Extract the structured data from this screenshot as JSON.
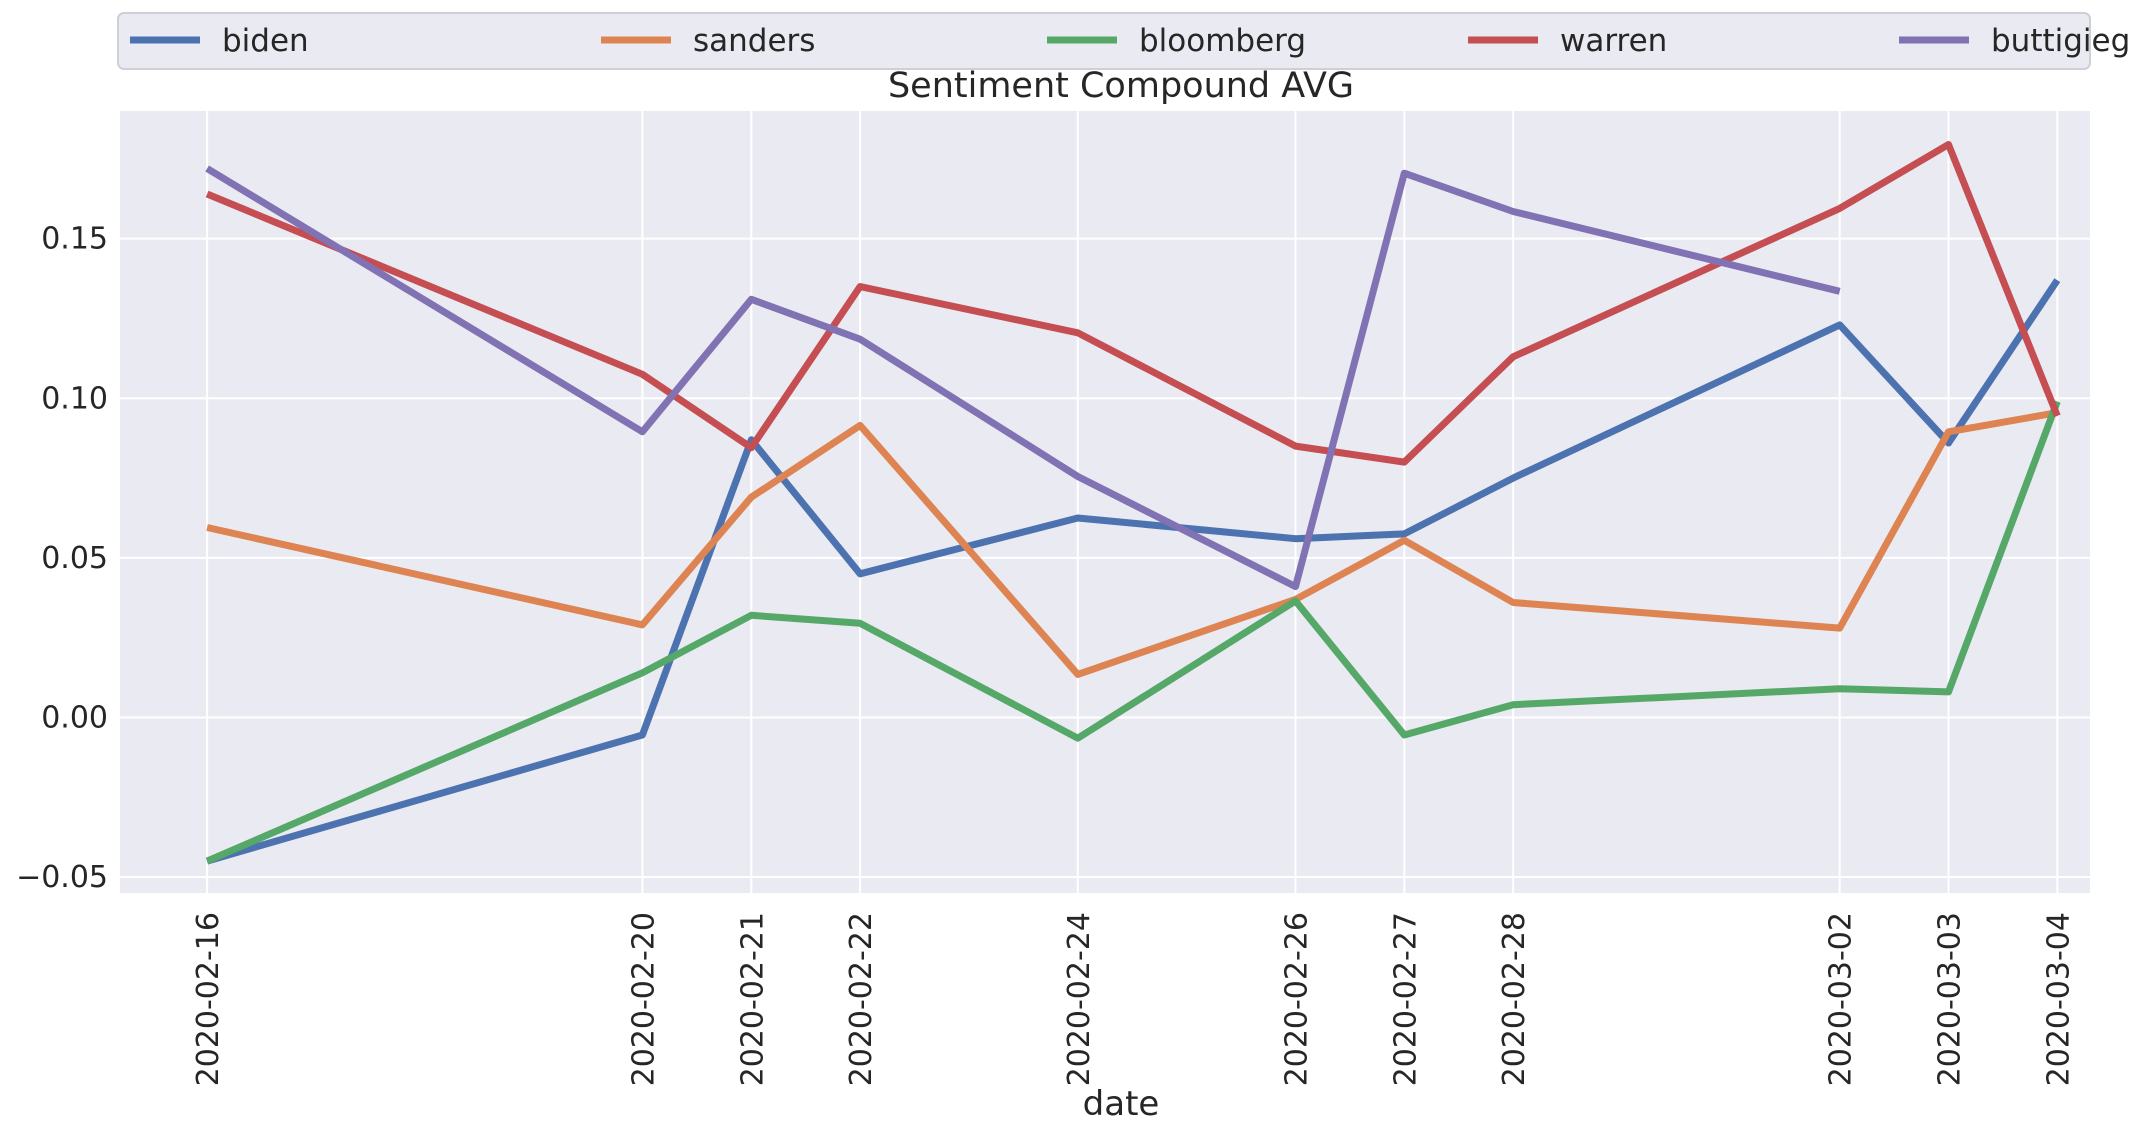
{
  "chart_data": {
    "type": "line",
    "title": "Sentiment Compound AVG",
    "xlabel": "date",
    "ylabel": "",
    "x": [
      "2020-02-16",
      "2020-02-20",
      "2020-02-21",
      "2020-02-22",
      "2020-02-24",
      "2020-02-26",
      "2020-02-27",
      "2020-02-28",
      "2020-03-02",
      "2020-03-03",
      "2020-03-04"
    ],
    "x_ticks": [
      "2020-02-16",
      "2020-02-20",
      "2020-02-21",
      "2020-02-22",
      "2020-02-24",
      "2020-02-26",
      "2020-02-27",
      "2020-02-28",
      "2020-03-02",
      "2020-03-03",
      "2020-03-04"
    ],
    "xlim": [
      "2020-02-15.2",
      "2020-03-04.3"
    ],
    "y_ticks": [
      -0.05,
      0.0,
      0.05,
      0.1,
      0.15
    ],
    "y_tick_labels": [
      "−0.05",
      "0.00",
      "0.05",
      "0.10",
      "0.15"
    ],
    "ylim": [
      -0.055,
      0.19
    ],
    "grid": true,
    "legend_position": "top, above plot, horizontal",
    "background": "#eaeaf2",
    "series": [
      {
        "name": "biden",
        "color": "#4c72b0",
        "values": [
          -0.045,
          -0.0055,
          0.087,
          0.045,
          0.0625,
          0.056,
          0.0575,
          0.075,
          0.123,
          0.086,
          0.137
        ]
      },
      {
        "name": "sanders",
        "color": "#dd8452",
        "values": [
          0.0595,
          0.029,
          0.069,
          0.0915,
          0.0135,
          0.037,
          0.0555,
          0.036,
          0.028,
          0.0895,
          0.0955
        ]
      },
      {
        "name": "bloomberg",
        "color": "#55a868",
        "values": [
          -0.045,
          0.014,
          0.032,
          0.0295,
          -0.0065,
          0.0365,
          -0.0055,
          0.004,
          0.009,
          0.008,
          0.099
        ]
      },
      {
        "name": "warren",
        "color": "#c44e52",
        "values": [
          0.164,
          0.1075,
          0.0845,
          0.135,
          0.1205,
          0.085,
          0.08,
          0.113,
          0.1595,
          0.1795,
          0.0945
        ]
      },
      {
        "name": "buttigieg",
        "color": "#8172b3",
        "values": [
          0.172,
          0.0895,
          0.131,
          0.1185,
          0.0755,
          0.041,
          0.1705,
          0.1585,
          0.1335,
          null,
          null
        ]
      }
    ]
  }
}
